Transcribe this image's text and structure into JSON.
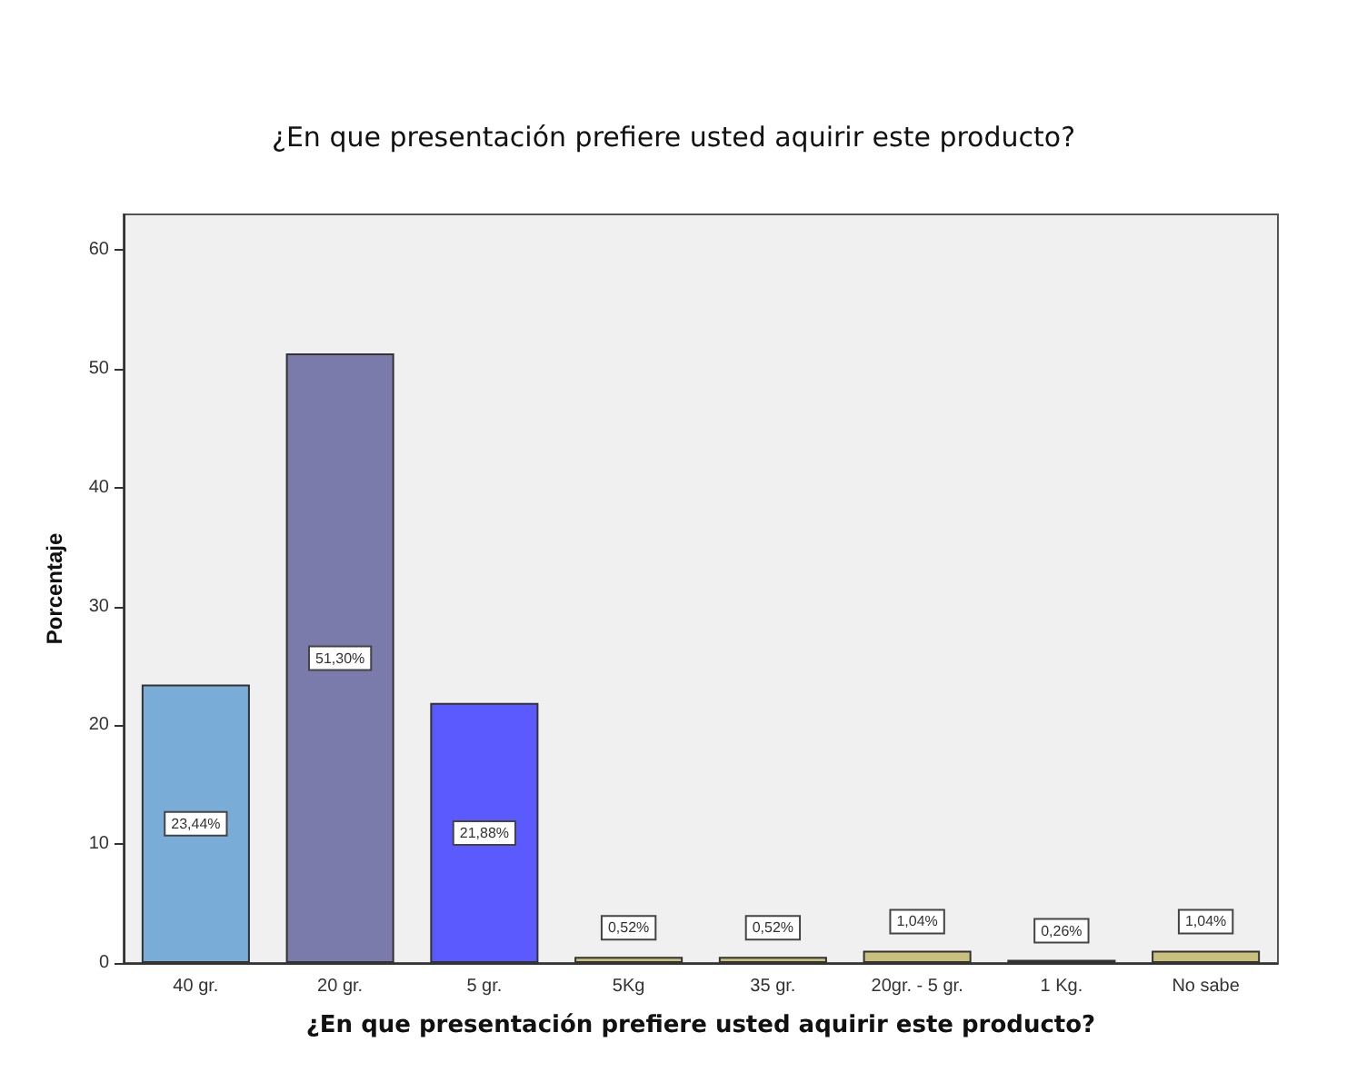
{
  "chart_data": {
    "type": "bar",
    "title": "¿En que presentación prefiere usted aquirir este producto?",
    "xlabel": "¿En que presentación prefiere usted aquirir este producto?",
    "ylabel": "Porcentaje",
    "categories": [
      "40 gr.",
      "20 gr.",
      "5 gr.",
      "5Kg",
      "35 gr.",
      "20gr. - 5 gr.",
      "1 Kg.",
      "No sabe"
    ],
    "values": [
      23.44,
      51.3,
      21.88,
      0.52,
      0.52,
      1.04,
      0.26,
      1.04
    ],
    "value_labels": [
      "23,44%",
      "51,30%",
      "21,88%",
      "0,52%",
      "0,52%",
      "1,04%",
      "0,26%",
      "1,04%"
    ],
    "colors": [
      "#7aacd8",
      "#7b7bab",
      "#5a5aff",
      "#c8c07c",
      "#c8c07c",
      "#c8c07c",
      "#8a8a60",
      "#c8c07c"
    ],
    "ylim": [
      0,
      63
    ],
    "yticks": [
      0,
      10,
      20,
      30,
      40,
      50,
      60
    ],
    "grid": false
  }
}
